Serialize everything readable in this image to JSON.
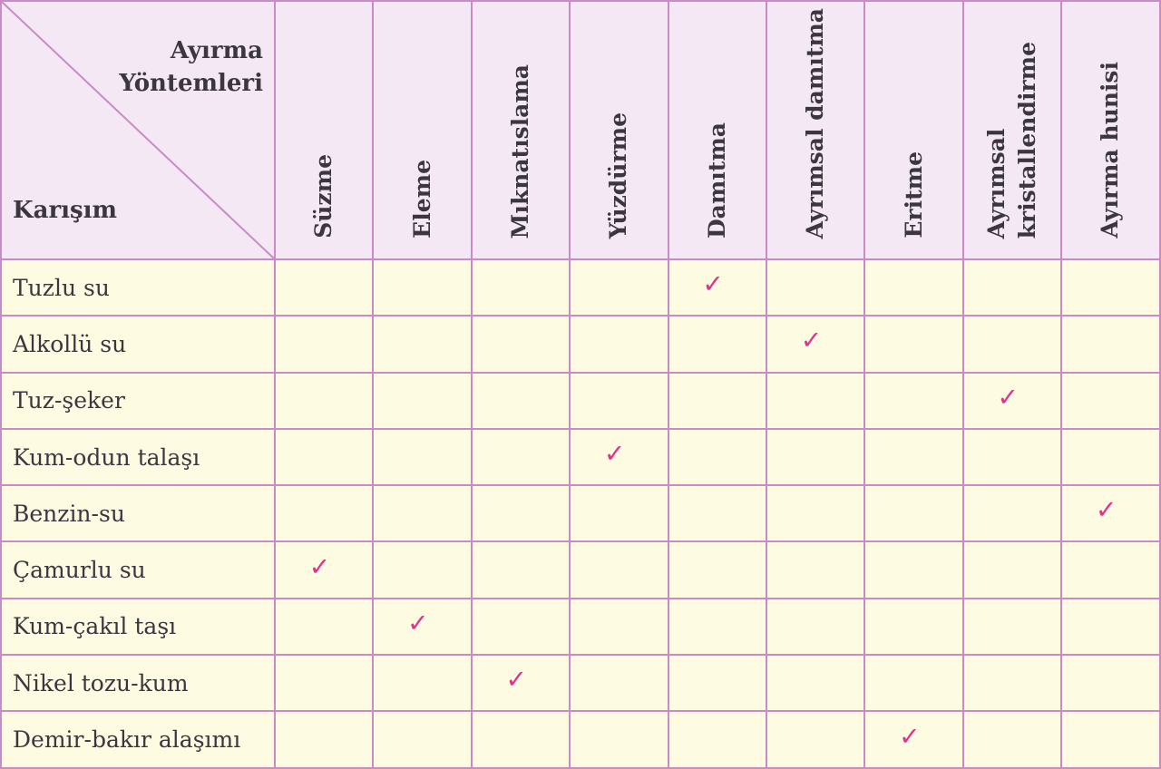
{
  "corner": {
    "methods_line1": "Ayırma",
    "methods_line2": "Yöntemleri",
    "mixture_label": "Karışım"
  },
  "methods": [
    "Süzme",
    "Eleme",
    "Mıknatıslama",
    "Yüzdürme",
    "Damıtma",
    "Ayrımsal damıtma",
    "Eritme",
    "Ayrımsal\nkristallendirme",
    "Ayırma hunisi"
  ],
  "mixtures": [
    {
      "name": "Tuzlu su",
      "method_index": 4
    },
    {
      "name": "Alkollü su",
      "method_index": 5
    },
    {
      "name": "Tuz-şeker",
      "method_index": 7
    },
    {
      "name": "Kum-odun talaşı",
      "method_index": 3
    },
    {
      "name": "Benzin-su",
      "method_index": 8
    },
    {
      "name": "Çamurlu su",
      "method_index": 0
    },
    {
      "name": "Kum-çakıl taşı",
      "method_index": 1
    },
    {
      "name": "Nikel tozu-kum",
      "method_index": 2
    },
    {
      "name": "Demir-bakır alaşımı",
      "method_index": 6
    }
  ],
  "check_mark": "✓",
  "colors": {
    "border": "#c98ac6",
    "header_bg": "#f4e8f5",
    "body_bg": "#fdfbe1",
    "check": "#e0338b",
    "text": "#3b3640"
  }
}
